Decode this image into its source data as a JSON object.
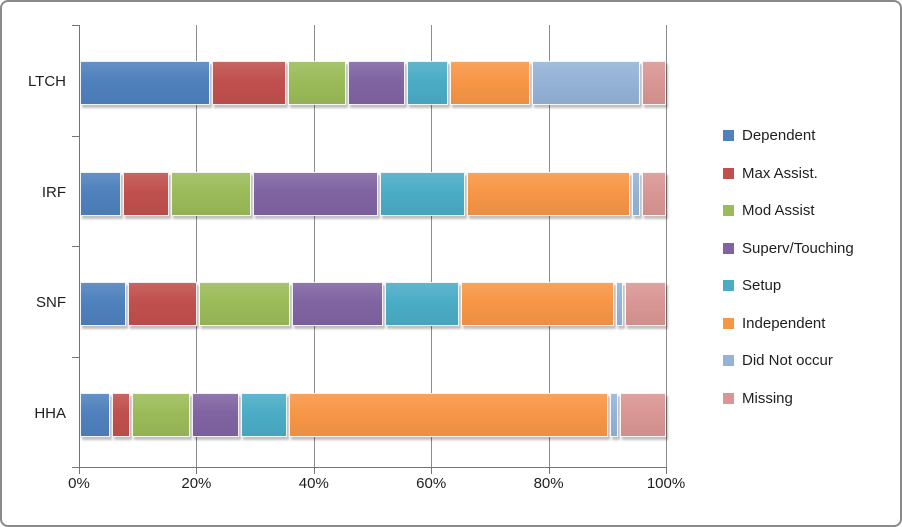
{
  "window": {
    "background": "#ffffff",
    "border_color": "#8a8a8a",
    "gridline_color": "#8c8c8c",
    "axis_color": "#747474",
    "text_color": "#1f1f1f"
  },
  "chart_data": {
    "type": "bar",
    "variant": "horizontal-stacked-100pct",
    "title": "",
    "xlabel": "",
    "ylabel": "",
    "xlim": [
      0,
      100
    ],
    "grid": true,
    "legend_position": "right",
    "categories": [
      "LTCH",
      "IRF",
      "SNF",
      "HHA"
    ],
    "x_ticks": [
      "0%",
      "20%",
      "40%",
      "60%",
      "80%",
      "100%"
    ],
    "series": [
      {
        "name": "Dependent",
        "color": "#4F81BD",
        "values": [
          23,
          7,
          8,
          5
        ]
      },
      {
        "name": "Max Assist.",
        "color": "#C0504D",
        "values": [
          13,
          8,
          12,
          3
        ]
      },
      {
        "name": "Mod Assist",
        "color": "#9BBB59",
        "values": [
          10,
          14,
          16,
          10
        ]
      },
      {
        "name": "Superv/Touching",
        "color": "#8064A2",
        "values": [
          10,
          22,
          16,
          8
        ]
      },
      {
        "name": "Setup",
        "color": "#4BACC6",
        "values": [
          7,
          15,
          13,
          8
        ]
      },
      {
        "name": "Independent",
        "color": "#F79646",
        "values": [
          14,
          29,
          27,
          57
        ]
      },
      {
        "name": "Did Not occur",
        "color": "#95B3D7",
        "values": [
          19,
          1,
          1,
          1
        ]
      },
      {
        "name": "Missing",
        "color": "#D99694",
        "values": [
          4,
          4,
          7,
          8
        ]
      }
    ]
  }
}
